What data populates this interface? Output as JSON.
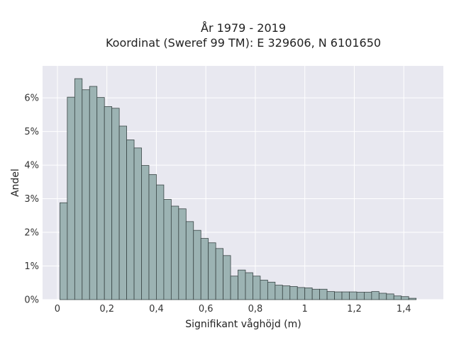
{
  "chart_data": {
    "type": "bar",
    "title": "År 1979 - 2019",
    "subtitle": "Koordinat (Sweref 99 TM): E 329606, N 6101650",
    "xlabel": "Signifikant våghöjd (m)",
    "ylabel": "Andel",
    "bin_width": 0.03,
    "x_start": 0.01,
    "xlim": [
      -0.06,
      1.56
    ],
    "ylim": [
      0,
      0.0695
    ],
    "x_ticks": [
      0,
      0.2,
      0.4,
      0.6,
      0.8,
      1.0,
      1.2,
      1.4
    ],
    "x_tick_labels": [
      "0",
      "0,2",
      "0,4",
      "0,6",
      "0,8",
      "1",
      "1,2",
      "1,4"
    ],
    "y_ticks": [
      0,
      0.01,
      0.02,
      0.03,
      0.04,
      0.05,
      0.06
    ],
    "y_tick_labels": [
      "0%",
      "1%",
      "2%",
      "3%",
      "4%",
      "5%",
      "6%"
    ],
    "values": [
      0.0288,
      0.0602,
      0.0657,
      0.0624,
      0.0634,
      0.0601,
      0.0574,
      0.0569,
      0.0516,
      0.0475,
      0.0451,
      0.0399,
      0.0372,
      0.0341,
      0.0298,
      0.0278,
      0.027,
      0.0232,
      0.0206,
      0.0182,
      0.0169,
      0.0152,
      0.0131,
      0.007,
      0.0088,
      0.008,
      0.007,
      0.0058,
      0.0052,
      0.0043,
      0.0041,
      0.0039,
      0.0036,
      0.0035,
      0.0031,
      0.0031,
      0.0024,
      0.0023,
      0.0023,
      0.0023,
      0.0022,
      0.0022,
      0.0024,
      0.0019,
      0.0017,
      0.0011,
      0.0009,
      0.0004
    ],
    "grid": true,
    "colors": {
      "plot_bg": "#e8e8f0",
      "grid": "#ffffff",
      "bar_fill": "#9cb3b3",
      "bar_edge": "#3a4646"
    }
  }
}
